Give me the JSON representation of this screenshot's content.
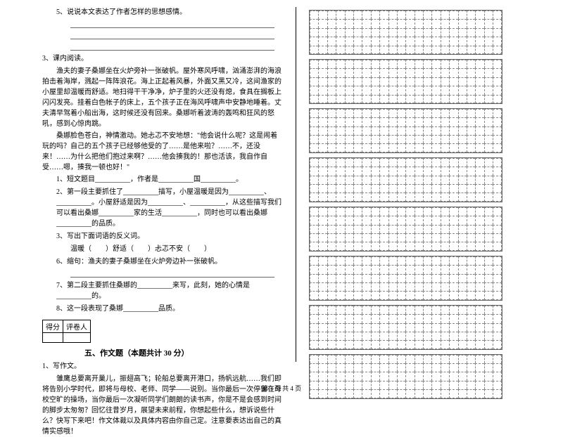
{
  "q5": {
    "text": "5、说说本文表达了作者怎样的思想感情。"
  },
  "q3_header": "3、课内阅读。",
  "passage1": "渔夫的妻子桑娜坐在火炉旁补一张破帆。屋外寒风呼啸，汹涌澎湃的海浪拍击着海岸，溅起一阵阵浪花。海上正起着风暴，外面又黑又冷，这间渔家的小屋里却温暖而舒适。地扫得干干净净，炉子里的火还没有熄，食具在搁板上闪闪发亮。挂着白色帐子的床上，五个孩子正在海风呼啸声中安静地睡着。丈夫清早驾着小船出海，这时候还没有回来。桑娜听着波涛的轰鸣和狂风的怒吼，感到心惊肉跳。",
  "passage2": "桑娜脸色苍白，神情激动。她忐忑不安地想：\"他会说什么呢？这是闹着玩的吗？自己的五个孩子已经够他受的了……是他来啦？……不，还没来！……为什么把他们抱过来啊？……他会揍我的！那也活该，我自作自受……嗯，揍我一顿也好！\"",
  "sub1": "1、短文题目__________，作者是__________国__________。",
  "sub2": "2、第一段主要抓住了__________描写，小屋温暖是因为__________、__________。小屋舒适是因为__________、__________，从这些描写我们可以看出桑娜__________家的生活__________，同时也可以看出桑娜__________的品质。",
  "sub3": "3、写出下面词语的反义词。",
  "sub3_words": "温暖（　　）舒适（　　）忐忑不安（　　）",
  "sub4": "6、缩句：渔夫的妻子桑娜坐在火炉旁边补一张破帆。",
  "sub5": "7、第二段主要抓住桑娜的__________来写，此刻，她的心情是__________的。",
  "sub6": "8、这一段表现了桑娜__________品质。",
  "score_labels": {
    "a": "得分",
    "b": "评卷人"
  },
  "section5": "五、作文题（本题共计 30 分）",
  "essay_num": "1、写作文。",
  "essay_body": "雏鹰总要离开巢儿，振翅高飞；轮船总要离开港口，扬帆远航……我们即将告别小学时代，即将与母校、老师、同学——说别。当你最后一次停留在母校空旷的操场，当你最后一次凝听同学们朗朗的读书声，你是不是会感到时间的脚步太匆匆？回忆往昔岁月，展望未来前程，你想起些什么，想诉说些什么？快写下来吧！作文体裁以及具体内容由你自己定。注意要表达出自己的真情实感哦！",
  "footer": "第 3 页 共 4 页",
  "grid": {
    "cols": 22,
    "rows_per_block": 5,
    "blocks": 8
  }
}
